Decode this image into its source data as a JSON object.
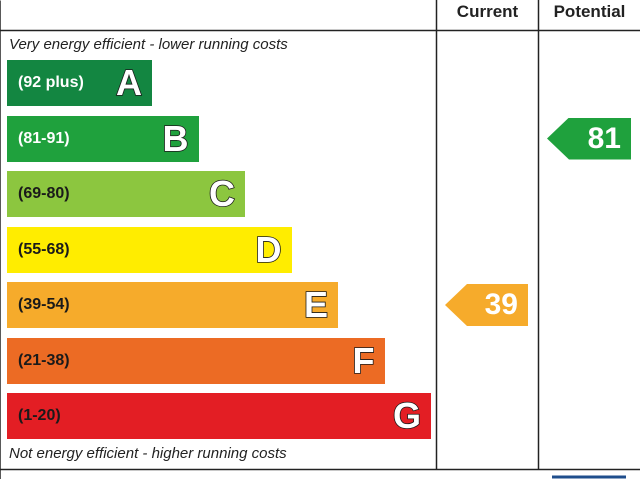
{
  "table": {
    "current_header": "Current",
    "potential_header": "Potential"
  },
  "notes": {
    "top": "Very energy efficient - lower running costs",
    "bottom": "Not energy efficient - higher running costs"
  },
  "chart_data": {
    "type": "bar",
    "categories": [
      "A",
      "B",
      "C",
      "D",
      "E",
      "F",
      "G"
    ],
    "ranges": [
      "(92 plus)",
      "(81-91)",
      "(69-80)",
      "(55-68)",
      "(39-54)",
      "(21-38)",
      "(1-20)"
    ],
    "band_colors": [
      "#138641",
      "#1fa13d",
      "#8cc63f",
      "#ffed00",
      "#f6ab2b",
      "#ec6b24",
      "#e31e24"
    ],
    "range_text_colors": [
      "#ffffff",
      "#ffffff",
      "#1a1a1a",
      "#1a1a1a",
      "#1a1a1a",
      "#1a1a1a",
      "#1a1a1a"
    ],
    "current": {
      "value": 39,
      "band": "E",
      "color": "#f6ab2b"
    },
    "potential": {
      "value": 81,
      "band": "B",
      "color": "#1fa13d"
    }
  }
}
